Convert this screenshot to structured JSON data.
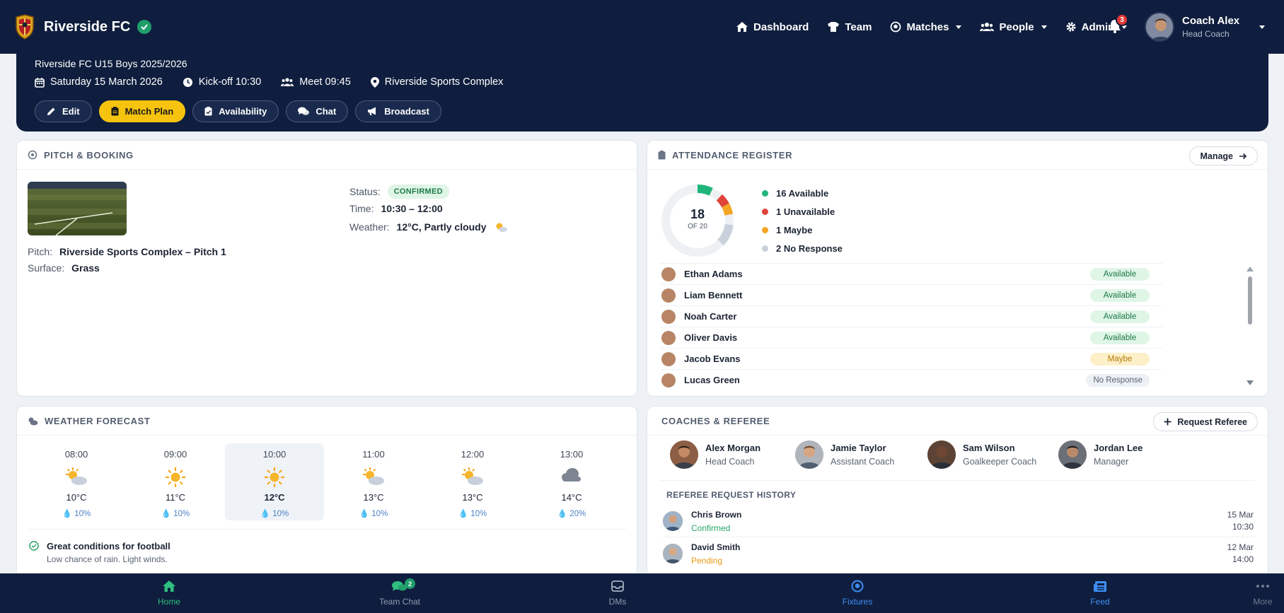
{
  "app": {
    "name": "Riverside FC",
    "notifications_count": "3"
  },
  "nav": {
    "items": [
      {
        "label": "Dashboard",
        "icon": "home-icon"
      },
      {
        "label": "Team",
        "icon": "shirt-icon"
      },
      {
        "label": "Matches",
        "icon": "football-icon"
      },
      {
        "label": "People",
        "icon": "users-icon"
      },
      {
        "label": "Admin",
        "icon": "gear-icon"
      }
    ]
  },
  "user": {
    "name": "Coach Alex",
    "role": "Head Coach"
  },
  "match": {
    "team": "Riverside FC U15 Boys 2025/2026",
    "date": "Saturday 15 March 2026",
    "kickoff": "Kick-off 10:30",
    "meet": "Meet 09:45",
    "venue": "Riverside Sports Complex",
    "actions": {
      "edit": "Edit",
      "match_plan": "Match Plan",
      "availability": "Availability",
      "chat": "Chat",
      "broadcast": "Broadcast"
    }
  },
  "pitch": {
    "title": "PITCH & BOOKING",
    "pitch_label": "Pitch:",
    "pitch_value": "Riverside Sports Complex – Pitch 1",
    "surface_label": "Surface:",
    "surface_value": "Grass",
    "status_label": "Status:",
    "status_value": "CONFIRMED",
    "time_label": "Time:",
    "time_value": "10:30 – 12:00",
    "weather_label": "Weather:",
    "weather_value": "12°C, Partly cloudy"
  },
  "attendance": {
    "title": "ATTENDANCE REGISTER",
    "manage": "Manage",
    "total": "18",
    "of_label": "OF 20",
    "total_value": 18,
    "squad_size": 20,
    "legend": [
      {
        "count": 16,
        "text": "16  Available",
        "color": "#1fb57a"
      },
      {
        "count": 1,
        "text": "1  Unavailable",
        "color": "#e0443a"
      },
      {
        "count": 1,
        "text": "1  Maybe",
        "color": "#f5a623"
      },
      {
        "count": 2,
        "text": "2  No Response",
        "color": "#c9d1dc"
      }
    ],
    "players": [
      {
        "name": "Ethan Adams",
        "status": "Available",
        "kind": "available"
      },
      {
        "name": "Liam Bennett",
        "status": "Available",
        "kind": "available"
      },
      {
        "name": "Noah Carter",
        "status": "Available",
        "kind": "available"
      },
      {
        "name": "Oliver Davis",
        "status": "Available",
        "kind": "available"
      },
      {
        "name": "Jacob Evans",
        "status": "Maybe",
        "kind": "maybe"
      },
      {
        "name": "Lucas Green",
        "status": "No Response",
        "kind": "none"
      }
    ]
  },
  "weather": {
    "title": "WEATHER FORECAST",
    "hours": [
      {
        "time": "08:00",
        "icon": "partly-cloudy-icon",
        "temp": "10°C",
        "rain": "10%"
      },
      {
        "time": "09:00",
        "icon": "sun-icon",
        "temp": "11°C",
        "rain": "10%"
      },
      {
        "time": "10:00",
        "icon": "sun-icon",
        "temp": "12°C",
        "rain": "10%"
      },
      {
        "time": "11:00",
        "icon": "partly-cloudy-icon",
        "temp": "13°C",
        "rain": "10%"
      },
      {
        "time": "12:00",
        "icon": "partly-cloudy-icon",
        "temp": "13°C",
        "rain": "10%"
      },
      {
        "time": "13:00",
        "icon": "cloud-icon",
        "temp": "14°C",
        "rain": "20%"
      }
    ],
    "note_title": "Great conditions for football",
    "note_sub": "Low chance of rain. Light winds."
  },
  "coaches": {
    "title": "COACHES & REFEREE",
    "request_button": "Request Referee",
    "people": [
      {
        "name": "Alex Morgan",
        "role": "Head Coach"
      },
      {
        "name": "Jamie Taylor",
        "role": "Assistant Coach"
      },
      {
        "name": "Sam Wilson",
        "role": "Goalkeeper Coach"
      },
      {
        "name": "Jordan Lee",
        "role": "Manager"
      }
    ],
    "history_title": "REFEREE REQUEST HISTORY",
    "history": [
      {
        "name": "Chris Brown",
        "status": "Confirmed",
        "status_color": "#2aa46a",
        "date": "15 Mar",
        "time": "10:30"
      },
      {
        "name": "David Smith",
        "status": "Pending",
        "status_color": "#e69a12",
        "date": "12 Mar",
        "time": "14:00"
      }
    ]
  },
  "bottom_nav": {
    "items": [
      {
        "label": "Home",
        "color": "#2fbf7f"
      },
      {
        "label": "Team Chat",
        "color": "#8f9bb0",
        "badge": "2"
      },
      {
        "label": "DMs",
        "color": "#8f9bb0"
      },
      {
        "label": "Fixtures",
        "color": "#3e8ef7"
      },
      {
        "label": "Feed",
        "color": "#3e8ef7"
      },
      {
        "label": "More",
        "color": "#6f7a8f"
      }
    ]
  }
}
